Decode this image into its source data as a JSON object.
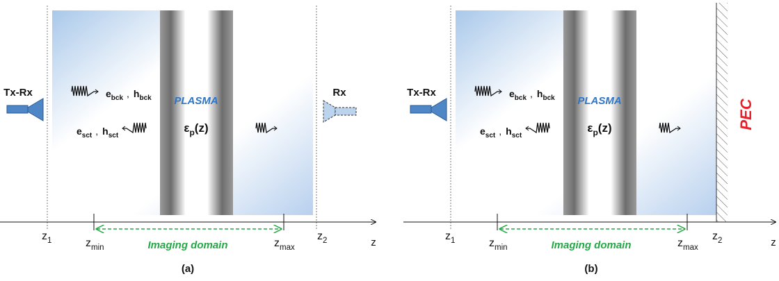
{
  "panels": [
    {
      "caption": "(a)",
      "transmitter": "Tx-Rx",
      "incident": {
        "e": "e",
        "e_sub": "bck",
        "sep": ",",
        "h": "h",
        "h_sub": "bck"
      },
      "scattered": {
        "e": "e",
        "e_sub": "sct",
        "sep": ",",
        "h": "h",
        "h_sub": "sct"
      },
      "medium": "PLASMA",
      "permittivity": {
        "symbol": "ε",
        "sub": "p",
        "arg": "(z)"
      },
      "receiver": "Rx",
      "axis": {
        "z1": {
          "base": "z",
          "sub": "1"
        },
        "zmin": {
          "base": "z",
          "sub": "min"
        },
        "zmax": {
          "base": "z",
          "sub": "max"
        },
        "z2": {
          "base": "z",
          "sub": "2"
        },
        "z": "z"
      },
      "domain": "Imaging domain"
    },
    {
      "caption": "(b)",
      "transmitter": "Tx-Rx",
      "incident": {
        "e": "e",
        "e_sub": "bck",
        "sep": ",",
        "h": "h",
        "h_sub": "bck"
      },
      "scattered": {
        "e": "e",
        "e_sub": "sct",
        "sep": ",",
        "h": "h",
        "h_sub": "sct"
      },
      "medium": "PLASMA",
      "permittivity": {
        "symbol": "ε",
        "sub": "p",
        "arg": "(z)"
      },
      "boundary": "PEC",
      "axis": {
        "z1": {
          "base": "z",
          "sub": "1"
        },
        "zmin": {
          "base": "z",
          "sub": "min"
        },
        "zmax": {
          "base": "z",
          "sub": "max"
        },
        "z2": {
          "base": "z",
          "sub": "2"
        },
        "z": "z"
      },
      "domain": "Imaging domain"
    }
  ]
}
